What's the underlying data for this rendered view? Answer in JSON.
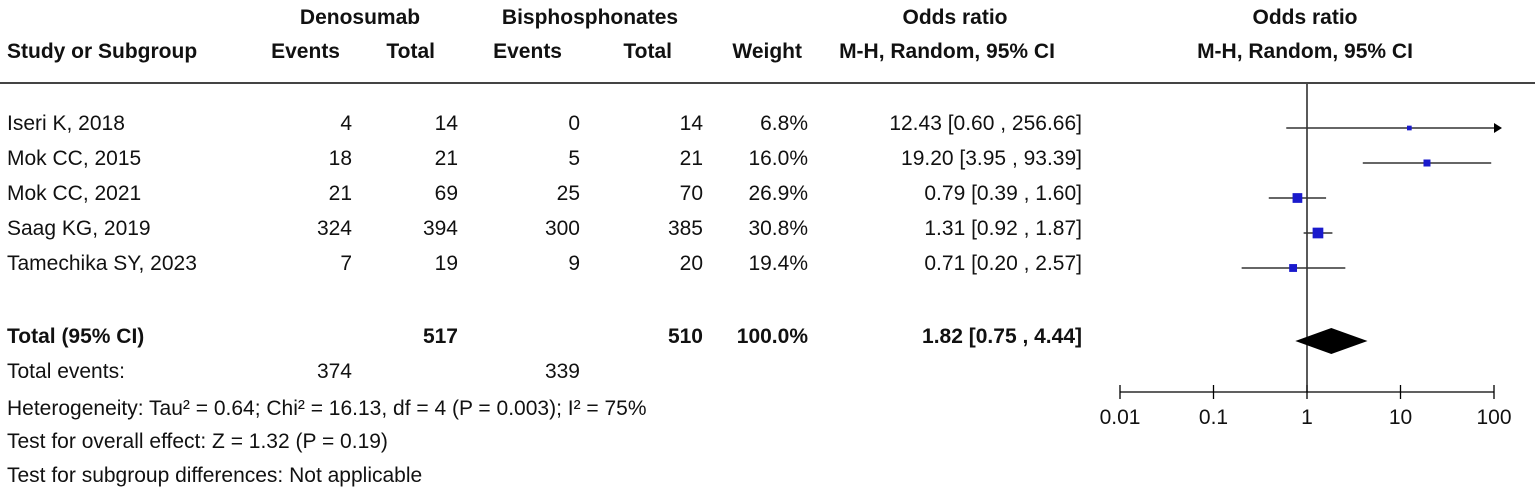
{
  "header": {
    "group1": "Denosumab",
    "group2": "Bisphosphonates",
    "odds_ratio_col": "Odds ratio",
    "odds_ratio_plot": "Odds ratio",
    "study": "Study or Subgroup",
    "events1": "Events",
    "total1": "Total",
    "events2": "Events",
    "total2": "Total",
    "weight": "Weight",
    "method_col": "M-H, Random, 95% CI",
    "method_plot": "M-H, Random, 95% CI"
  },
  "studies": [
    {
      "name": "Iseri K, 2018",
      "e1": "4",
      "t1": "14",
      "e2": "0",
      "t2": "14",
      "weight": "6.8%",
      "ci": "12.43 [0.60 , 256.66]"
    },
    {
      "name": "Mok CC, 2015",
      "e1": "18",
      "t1": "21",
      "e2": "5",
      "t2": "21",
      "weight": "16.0%",
      "ci": "19.20 [3.95 , 93.39]"
    },
    {
      "name": "Mok CC, 2021",
      "e1": "21",
      "t1": "69",
      "e2": "25",
      "t2": "70",
      "weight": "26.9%",
      "ci": "0.79 [0.39 , 1.60]"
    },
    {
      "name": "Saag KG, 2019",
      "e1": "324",
      "t1": "394",
      "e2": "300",
      "t2": "385",
      "weight": "30.8%",
      "ci": "1.31 [0.92 , 1.87]"
    },
    {
      "name": "Tamechika SY, 2023",
      "e1": "7",
      "t1": "19",
      "e2": "9",
      "t2": "20",
      "weight": "19.4%",
      "ci": "0.71 [0.20 , 2.57]"
    }
  ],
  "total": {
    "label": "Total (95% CI)",
    "t1": "517",
    "t2": "510",
    "weight": "100.0%",
    "ci": "1.82 [0.75 , 4.44]"
  },
  "total_events": {
    "label": "Total events:",
    "e1": "374",
    "e2": "339"
  },
  "footer": {
    "heterogeneity": "Heterogeneity: Tau² = 0.64; Chi² = 16.13, df = 4 (P = 0.003); I² = 75%",
    "overall": "Test for overall effect: Z = 1.32 (P = 0.19)",
    "subgroup": "Test for subgroup differences: Not applicable"
  },
  "chart_data": {
    "type": "scatter",
    "subtype": "forest_plot",
    "x_scale": "log",
    "xlim": [
      0.01,
      100
    ],
    "ticks": [
      0.01,
      0.1,
      1,
      10,
      100
    ],
    "tick_labels": [
      "0.01",
      "0.1",
      "1",
      "10",
      "100"
    ],
    "reference_line": 1,
    "marker_color": "#1a1acc",
    "diamond_color": "#000000",
    "studies": [
      {
        "name": "Iseri K, 2018",
        "or": 12.43,
        "lo": 0.6,
        "hi": 256.66,
        "weight": 6.8,
        "arrow_right": true
      },
      {
        "name": "Mok CC, 2015",
        "or": 19.2,
        "lo": 3.95,
        "hi": 93.39,
        "weight": 16.0
      },
      {
        "name": "Mok CC, 2021",
        "or": 0.79,
        "lo": 0.39,
        "hi": 1.6,
        "weight": 26.9
      },
      {
        "name": "Saag KG, 2019",
        "or": 1.31,
        "lo": 0.92,
        "hi": 1.87,
        "weight": 30.8
      },
      {
        "name": "Tamechika SY, 2023",
        "or": 0.71,
        "lo": 0.2,
        "hi": 2.57,
        "weight": 19.4
      }
    ],
    "pooled": {
      "or": 1.82,
      "lo": 0.75,
      "hi": 4.44
    }
  }
}
